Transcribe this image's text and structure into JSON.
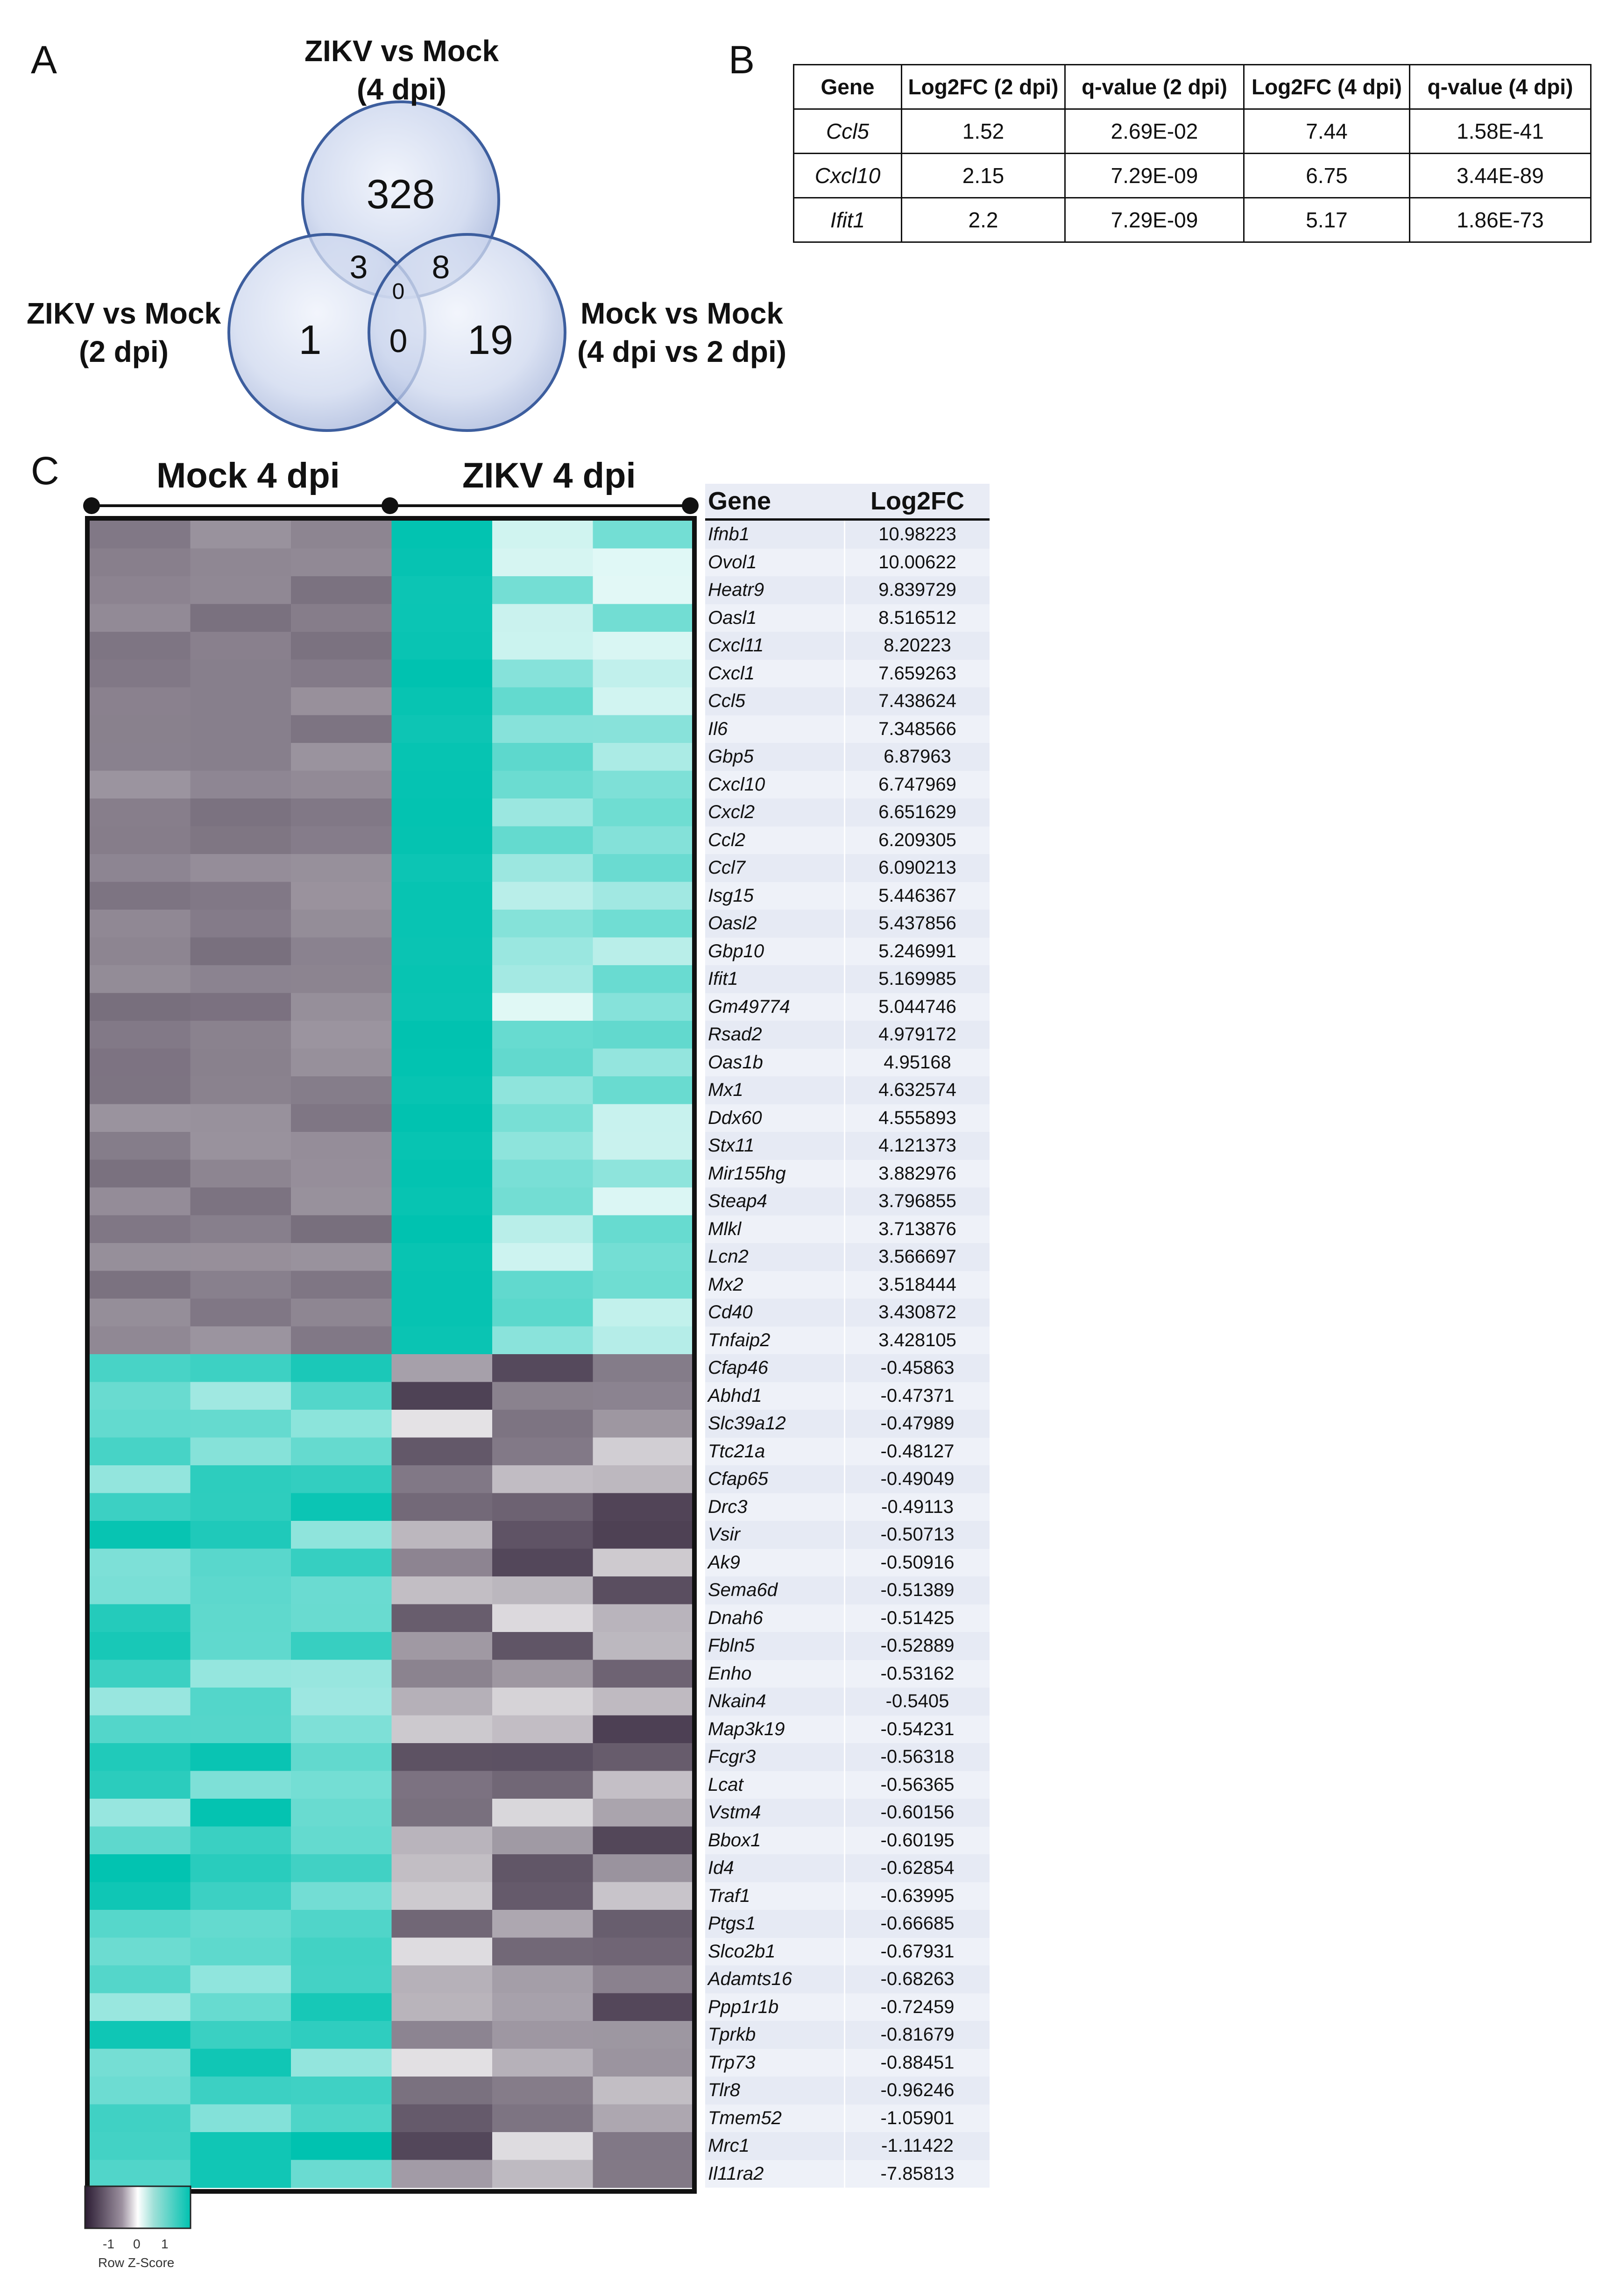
{
  "panels": {
    "a": "A",
    "b": "B",
    "c": "C"
  },
  "venn": {
    "top_title": [
      "ZIKV vs Mock",
      "(4 dpi)"
    ],
    "left_title": [
      "ZIKV vs Mock",
      "(2 dpi)"
    ],
    "right_title": [
      "Mock vs Mock",
      "(4 dpi vs 2 dpi)"
    ],
    "counts": {
      "top_only": "328",
      "left_only": "1",
      "right_only": "19",
      "top_left": "3",
      "top_right": "8",
      "left_right": "0",
      "all_three": "0"
    }
  },
  "tableB": {
    "headers": [
      "Gene",
      "Log2FC (2 dpi)",
      "q-value (2 dpi)",
      "Log2FC (4 dpi)",
      "q-value (4 dpi)"
    ],
    "rows": [
      [
        "Ccl5",
        "1.52",
        "2.69E-02",
        "7.44",
        "1.58E-41"
      ],
      [
        "Cxcl10",
        "2.15",
        "7.29E-09",
        "6.75",
        "3.44E-89"
      ],
      [
        "Ifit1",
        "2.2",
        "7.29E-09",
        "5.17",
        "1.86E-73"
      ]
    ]
  },
  "heatmap": {
    "group_left": "Mock 4 dpi",
    "group_right": "ZIKV 4 dpi",
    "table_header": {
      "gene": "Gene",
      "log2fc": "Log2FC"
    },
    "genes": [
      "Ifnb1",
      "Ovol1",
      "Heatr9",
      "Oasl1",
      "Cxcl11",
      "Cxcl1",
      "Ccl5",
      "Il6",
      "Gbp5",
      "Cxcl10",
      "Cxcl2",
      "Ccl2",
      "Ccl7",
      "Isg15",
      "Oasl2",
      "Gbp10",
      "Ifit1",
      "Gm49774",
      "Rsad2",
      "Oas1b",
      "Mx1",
      "Ddx60",
      "Stx11",
      "Mir155hg",
      "Steap4",
      "Mlkl",
      "Lcn2",
      "Mx2",
      "Cd40",
      "Tnfaip2",
      "Cfap46",
      "Abhd1",
      "Slc39a12",
      "Ttc21a",
      "Cfap65",
      "Drc3",
      "Vsir",
      "Ak9",
      "Sema6d",
      "Dnah6",
      "Fbln5",
      "Enho",
      "Nkain4",
      "Map3k19",
      "Fcgr3",
      "Lcat",
      "Vstm4",
      "Bbox1",
      "Id4",
      "Traf1",
      "Ptgs1",
      "Slco2b1",
      "Adamts16",
      "Ppp1r1b",
      "Tprkb",
      "Trp73",
      "Tlr8",
      "Tmem52",
      "Mrc1",
      "Il11ra2"
    ],
    "log2fc": [
      "10.98223",
      "10.00622",
      "9.839729",
      "8.516512",
      "8.20223",
      "7.659263",
      "7.438624",
      "7.348566",
      "6.87963",
      "6.747969",
      "6.651629",
      "6.209305",
      "6.090213",
      "5.446367",
      "5.437856",
      "5.246991",
      "5.169985",
      "5.044746",
      "4.979172",
      "4.95168",
      "4.632574",
      "4.555893",
      "4.121373",
      "3.882976",
      "3.796855",
      "3.713876",
      "3.566697",
      "3.518444",
      "3.430872",
      "3.428105",
      "-0.45863",
      "-0.47371",
      "-0.47989",
      "-0.48127",
      "-0.49049",
      "-0.49113",
      "-0.50713",
      "-0.50916",
      "-0.51389",
      "-0.51425",
      "-0.52889",
      "-0.53162",
      "-0.5405",
      "-0.54231",
      "-0.56318",
      "-0.56365",
      "-0.60156",
      "-0.60195",
      "-0.62854",
      "-0.63995",
      "-0.66685",
      "-0.67931",
      "-0.68263",
      "-0.72459",
      "-0.81679",
      "-0.88451",
      "-0.96246",
      "-1.05901",
      "-1.11422",
      "-7.85813"
    ]
  },
  "legend": {
    "ticks": [
      "-1",
      "0",
      "1"
    ],
    "label": "Row Z-Score"
  }
}
